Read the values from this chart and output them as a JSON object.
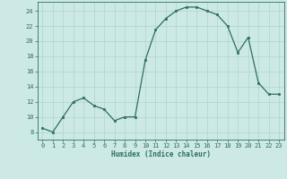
{
  "x": [
    0,
    1,
    2,
    3,
    4,
    5,
    6,
    7,
    8,
    9,
    10,
    11,
    12,
    13,
    14,
    15,
    16,
    17,
    18,
    19,
    20,
    21,
    22,
    23
  ],
  "y": [
    8.5,
    8.0,
    10.0,
    12.0,
    12.5,
    11.5,
    11.0,
    9.5,
    10.0,
    10.0,
    17.5,
    21.5,
    23.0,
    24.0,
    24.5,
    24.5,
    24.0,
    23.5,
    22.0,
    18.5,
    20.5,
    14.5,
    13.0,
    13.0
  ],
  "xlabel": "Humidex (Indice chaleur)",
  "xlim": [
    -0.5,
    23.5
  ],
  "ylim": [
    7,
    25.2
  ],
  "yticks": [
    8,
    10,
    12,
    14,
    16,
    18,
    20,
    22,
    24
  ],
  "xticks": [
    0,
    1,
    2,
    3,
    4,
    5,
    6,
    7,
    8,
    9,
    10,
    11,
    12,
    13,
    14,
    15,
    16,
    17,
    18,
    19,
    20,
    21,
    22,
    23
  ],
  "line_color": "#2e6e5e",
  "marker_color": "#2e6e5e",
  "bg_color": "#cce9e5",
  "grid_color": "#aed4cf",
  "label_fontsize": 5.5,
  "tick_fontsize": 5.0
}
